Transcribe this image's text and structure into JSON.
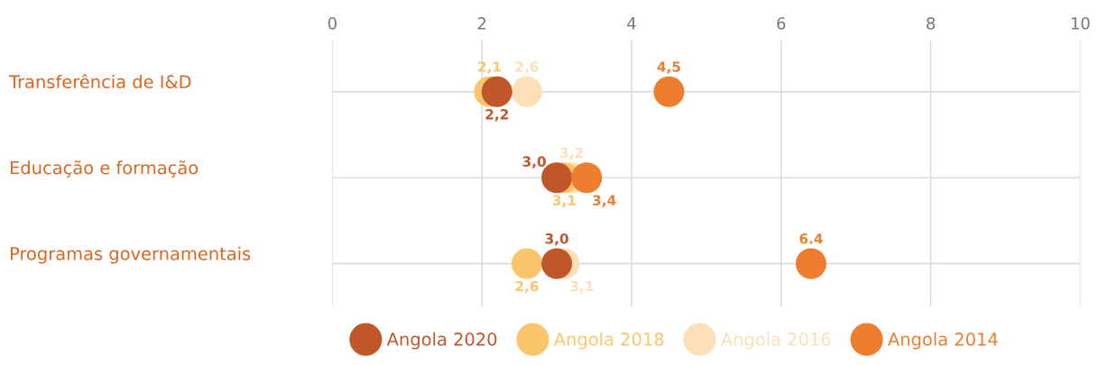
{
  "chart_data": {
    "type": "scatter",
    "categories": [
      "Transferência de I&D",
      "Educação e formação",
      "Programas governamentais"
    ],
    "series": [
      {
        "name": "Angola 2020",
        "axis": "x2",
        "color": "#c0562a",
        "values": [
          2.2,
          3.0,
          3.0
        ],
        "value_labels": [
          "2,2",
          "3,0",
          "3,0"
        ]
      },
      {
        "name": "Angola 2018",
        "axis": "x2",
        "color": "#fbc56a",
        "values": [
          2.1,
          3.1,
          2.6
        ],
        "value_labels": [
          "2,1",
          "3,1",
          "2,6"
        ]
      },
      {
        "name": "Angola 2016",
        "axis": "x2",
        "color": "#fde0b8",
        "values": [
          2.6,
          3.2,
          3.1
        ],
        "value_labels": [
          "2,6",
          "3,2",
          "3,1"
        ]
      },
      {
        "name": "Angola 2014",
        "axis": "x2",
        "color": "#ee7d2e",
        "values": [
          4.5,
          3.4,
          6.4
        ],
        "value_labels": [
          "4,5",
          "3,4",
          "6.4"
        ]
      }
    ],
    "orientation": "horizontal",
    "x2lim": [
      0,
      10
    ],
    "x2ticks": [
      0,
      2,
      4,
      6,
      8,
      10
    ],
    "grid": true,
    "legend": "bottom",
    "marker": "circle"
  }
}
